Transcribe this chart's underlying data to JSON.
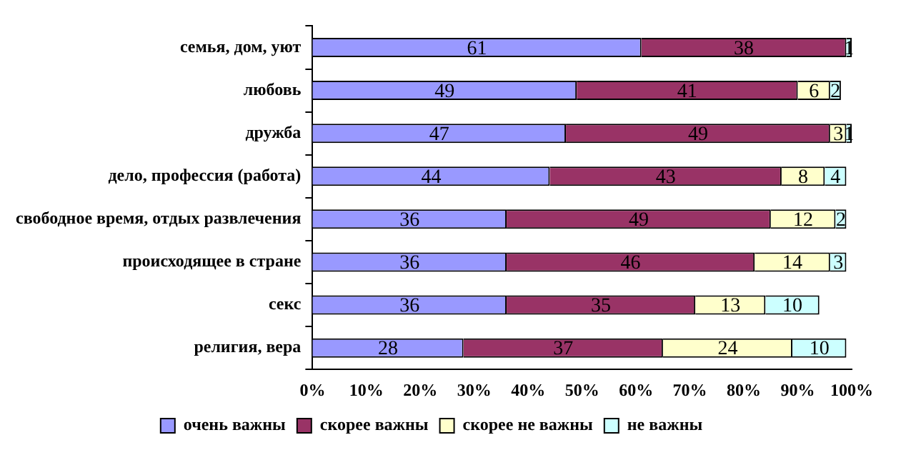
{
  "chart_data": {
    "type": "bar",
    "orientation": "horizontal",
    "stacked": true,
    "data_labels": true,
    "grid": false,
    "legend": "bottom",
    "categories": [
      "семья, дом, уют",
      "любовь",
      "дружба",
      "дело, профессия (работа)",
      "свободное время, отдых развлечения",
      "происходящее в стране",
      "секс",
      "религия, вера"
    ],
    "series": [
      {
        "name": "очень важны",
        "color": "#9999ff",
        "values": [
          61,
          49,
          47,
          44,
          36,
          36,
          36,
          28
        ]
      },
      {
        "name": "скорее важны",
        "color": "#993366",
        "values": [
          38,
          41,
          49,
          43,
          49,
          46,
          35,
          37
        ]
      },
      {
        "name": "скорее не важны",
        "color": "#ffffcc",
        "values": [
          null,
          6,
          3,
          8,
          12,
          14,
          13,
          24
        ]
      },
      {
        "name": "не важны",
        "color": "#ccffff",
        "values": [
          1,
          2,
          1,
          4,
          2,
          3,
          10,
          10
        ]
      }
    ],
    "xlim": [
      0,
      100
    ],
    "xticks": [
      {
        "value": 0,
        "label": "0%"
      },
      {
        "value": 10,
        "label": "10%"
      },
      {
        "value": 20,
        "label": "20%"
      },
      {
        "value": 30,
        "label": "30%"
      },
      {
        "value": 40,
        "label": "40%"
      },
      {
        "value": 50,
        "label": "50%"
      },
      {
        "value": 60,
        "label": "60%"
      },
      {
        "value": 70,
        "label": "70%"
      },
      {
        "value": 80,
        "label": "80%"
      },
      {
        "value": 90,
        "label": "90%"
      },
      {
        "value": 100,
        "label": "100%"
      }
    ]
  }
}
